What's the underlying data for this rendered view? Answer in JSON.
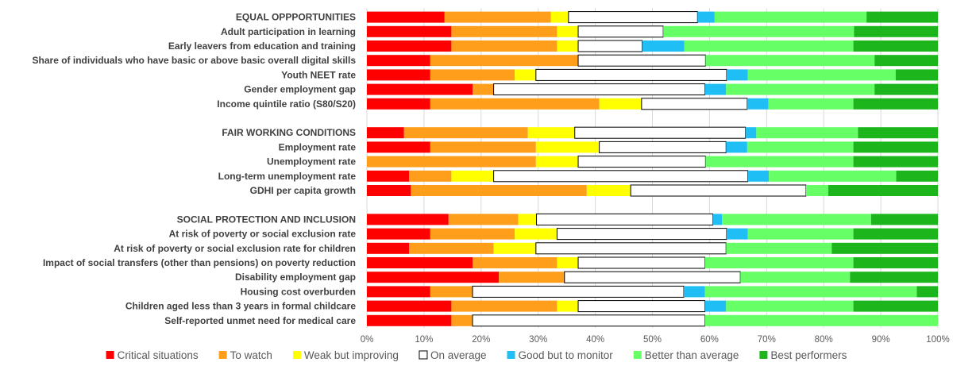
{
  "chart_data": {
    "type": "bar",
    "orientation": "horizontal",
    "stacked": true,
    "normalized": true,
    "xlim": [
      0,
      100
    ],
    "x_ticks": [
      "0%",
      "10%",
      "20%",
      "30%",
      "40%",
      "50%",
      "60%",
      "70%",
      "80%",
      "90%",
      "100%"
    ],
    "legend_position": "bottom",
    "series": [
      {
        "name": "Critical situations",
        "color": "#ff0000",
        "outlined": false
      },
      {
        "name": "To watch",
        "color": "#ff9e1b",
        "outlined": false
      },
      {
        "name": "Weak but improving",
        "color": "#ffff00",
        "outlined": false
      },
      {
        "name": "On average",
        "color": "#ffffff",
        "outlined": true
      },
      {
        "name": "Good but to monitor",
        "color": "#1fbff5",
        "outlined": false
      },
      {
        "name": "Better than average",
        "color": "#66ff66",
        "outlined": false
      },
      {
        "name": "Best performers",
        "color": "#1cb51c",
        "outlined": false
      }
    ],
    "rows": [
      {
        "label": "EQUAL OPPPORTUNITIES",
        "values": [
          13.6,
          18.6,
          3.1,
          22.6,
          3.0,
          26.6,
          12.5
        ]
      },
      {
        "label": "Adult participation in learning",
        "values": [
          14.8,
          18.5,
          3.7,
          14.9,
          0,
          33.4,
          14.7
        ]
      },
      {
        "label": "Early leavers from education and training",
        "values": [
          14.8,
          18.5,
          3.7,
          11.2,
          7.4,
          29.6,
          14.8
        ]
      },
      {
        "label": "Share of individuals who have basic or above basic overall digital skills",
        "values": [
          11.1,
          25.9,
          0,
          22.3,
          0,
          29.6,
          11.1
        ]
      },
      {
        "label": "Youth NEET rate",
        "values": [
          11.1,
          14.8,
          3.7,
          33.4,
          3.7,
          25.9,
          7.4
        ]
      },
      {
        "label": "Gender employment gap",
        "values": [
          18.5,
          3.7,
          0,
          37.0,
          3.7,
          26.0,
          11.1
        ]
      },
      {
        "label": "Income quintile ratio (S80/S20)",
        "values": [
          11.1,
          29.6,
          7.4,
          18.5,
          3.7,
          14.9,
          14.8
        ]
      },
      {
        "label": "",
        "values": [
          0,
          0,
          0,
          0,
          0,
          0,
          0
        ],
        "spacer": true
      },
      {
        "label": "FAIR WORKING CONDITIONS",
        "values": [
          6.5,
          21.7,
          8.2,
          29.9,
          1.9,
          17.8,
          14.0
        ]
      },
      {
        "label": "Employment rate",
        "values": [
          11.1,
          18.5,
          11.1,
          22.2,
          3.7,
          18.6,
          14.8
        ]
      },
      {
        "label": "Unemployment rate",
        "values": [
          0,
          29.6,
          7.4,
          22.3,
          0,
          25.9,
          14.8
        ]
      },
      {
        "label": "Long-term unemployment rate",
        "values": [
          7.4,
          7.4,
          7.4,
          44.5,
          3.7,
          22.3,
          7.3
        ]
      },
      {
        "label": "GDHI per capita growth",
        "values": [
          7.7,
          30.8,
          7.7,
          30.7,
          0,
          3.9,
          19.2
        ]
      },
      {
        "label": "",
        "values": [
          0,
          0,
          0,
          0,
          0,
          0,
          0
        ],
        "spacer": true
      },
      {
        "label": "SOCIAL PROTECTION AND INCLUSION",
        "values": [
          14.3,
          12.2,
          3.2,
          30.9,
          1.6,
          26.1,
          11.7
        ]
      },
      {
        "label": "At risk of poverty or social exclusion rate",
        "values": [
          11.1,
          14.8,
          7.4,
          29.7,
          3.7,
          18.5,
          14.8
        ]
      },
      {
        "label": "At risk of poverty or social exclusion rate for children",
        "values": [
          7.4,
          14.8,
          7.4,
          33.3,
          0,
          18.5,
          18.6
        ]
      },
      {
        "label": "Impact of social transfers (other than pensions) on poverty reduction",
        "values": [
          18.5,
          14.8,
          3.7,
          22.2,
          0,
          26.0,
          14.8
        ]
      },
      {
        "label": "Disability employment gap",
        "values": [
          23.1,
          11.5,
          0,
          30.8,
          0,
          19.2,
          15.4
        ]
      },
      {
        "label": "Housing cost overburden",
        "values": [
          11.1,
          7.4,
          0,
          37.0,
          3.7,
          37.1,
          3.7
        ]
      },
      {
        "label": "Children aged less than 3 years in formal childcare",
        "values": [
          14.8,
          18.5,
          3.7,
          22.2,
          3.7,
          22.3,
          14.8
        ]
      },
      {
        "label": "Self-reported unmet need for medical care",
        "values": [
          14.8,
          3.7,
          0,
          40.7,
          0,
          40.8,
          0
        ]
      }
    ]
  }
}
